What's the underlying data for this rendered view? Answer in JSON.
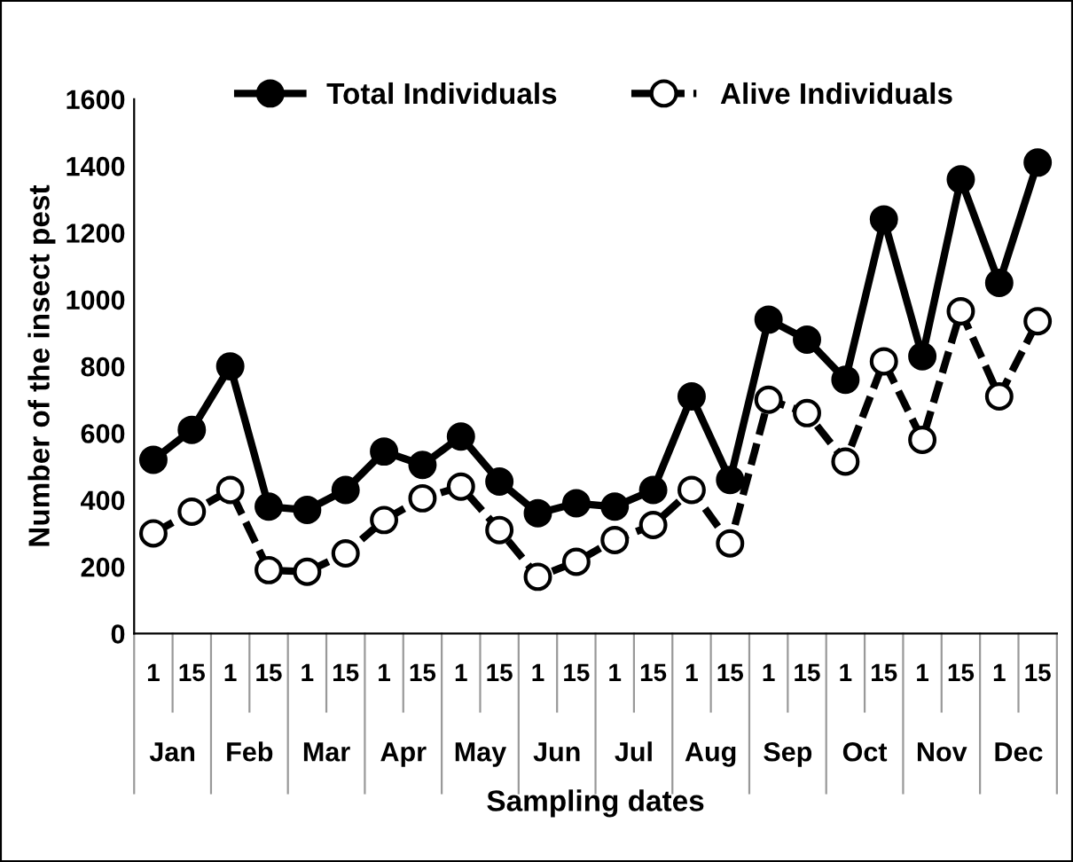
{
  "chart_data": {
    "type": "line",
    "xlabel": "Sampling dates",
    "ylabel": "Number of the insect pest",
    "categories": [
      "1",
      "15",
      "1",
      "15",
      "1",
      "15",
      "1",
      "15",
      "1",
      "15",
      "1",
      "15",
      "1",
      "15",
      "1",
      "15",
      "1",
      "15",
      "1",
      "15",
      "1",
      "15",
      "1",
      "15"
    ],
    "annotations": [
      "Jan",
      "Feb",
      "Mar",
      "Apr",
      "May",
      "Jun",
      "Jul",
      "Aug",
      "Sep",
      "Oct",
      "Nov",
      "Dec"
    ],
    "series": [
      {
        "name": "Total Individuals",
        "color": "#000000",
        "marker": "circle",
        "line_style": "solid",
        "values": [
          520,
          610,
          800,
          380,
          370,
          430,
          545,
          505,
          590,
          455,
          360,
          390,
          380,
          430,
          710,
          460,
          940,
          880,
          760,
          1240,
          830,
          1360,
          1050,
          1410
        ]
      },
      {
        "name": "Alive Individuals",
        "color": "#000000",
        "marker": "circle",
        "line_style": "dashed",
        "values": [
          300,
          365,
          430,
          190,
          185,
          240,
          340,
          405,
          440,
          310,
          170,
          215,
          280,
          325,
          430,
          270,
          700,
          660,
          515,
          815,
          580,
          965,
          710,
          935
        ]
      }
    ],
    "ylim": [
      0,
      1600
    ],
    "yticks": [
      0,
      200,
      400,
      600,
      800,
      1000,
      1200,
      1400,
      1600
    ],
    "grid": false,
    "legend": "top"
  }
}
